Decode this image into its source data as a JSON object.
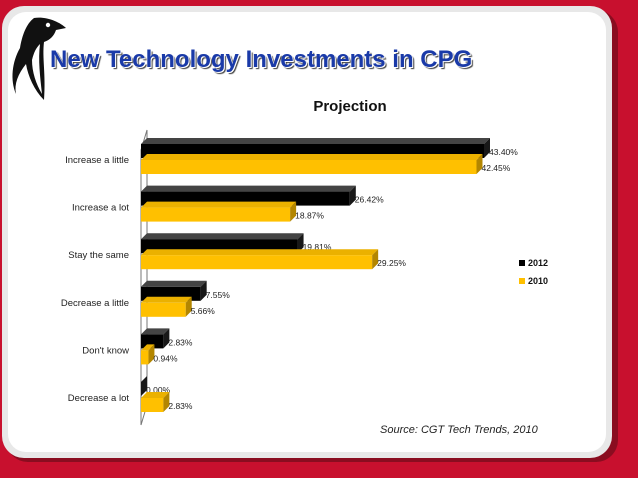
{
  "slide": {
    "title": "New Technology Investments in CPG",
    "source": "Source:  CGT Tech Trends, 2010"
  },
  "logo": {
    "icon": "penguin-icon"
  },
  "colors": {
    "background": "#c8102e",
    "title": "#1a3aa8",
    "series_2012": "#000000",
    "series_2010": "#ffc000"
  },
  "chart_data": {
    "type": "bar",
    "orientation": "horizontal",
    "title": "Projection",
    "categories": [
      "Increase a little",
      "Increase a lot",
      "Stay the same",
      "Decrease a little",
      "Don't know",
      "Decrease a lot"
    ],
    "series": [
      {
        "name": "2012",
        "color": "#000000",
        "values": [
          43.4,
          26.42,
          19.81,
          7.55,
          2.83,
          0.0
        ],
        "labels": [
          "43.40%",
          "26.42%",
          "19.81%",
          "7.55%",
          "2.83%",
          "0.00%"
        ]
      },
      {
        "name": "2010",
        "color": "#ffc000",
        "values": [
          42.45,
          18.87,
          29.25,
          5.66,
          0.94,
          2.83
        ],
        "labels": [
          "42.45%",
          "18.87%",
          "29.25%",
          "5.66%",
          "0.94%",
          "2.83%"
        ]
      }
    ],
    "xlim": [
      0,
      50
    ],
    "grid": false,
    "legend": "right",
    "style": "3d"
  }
}
